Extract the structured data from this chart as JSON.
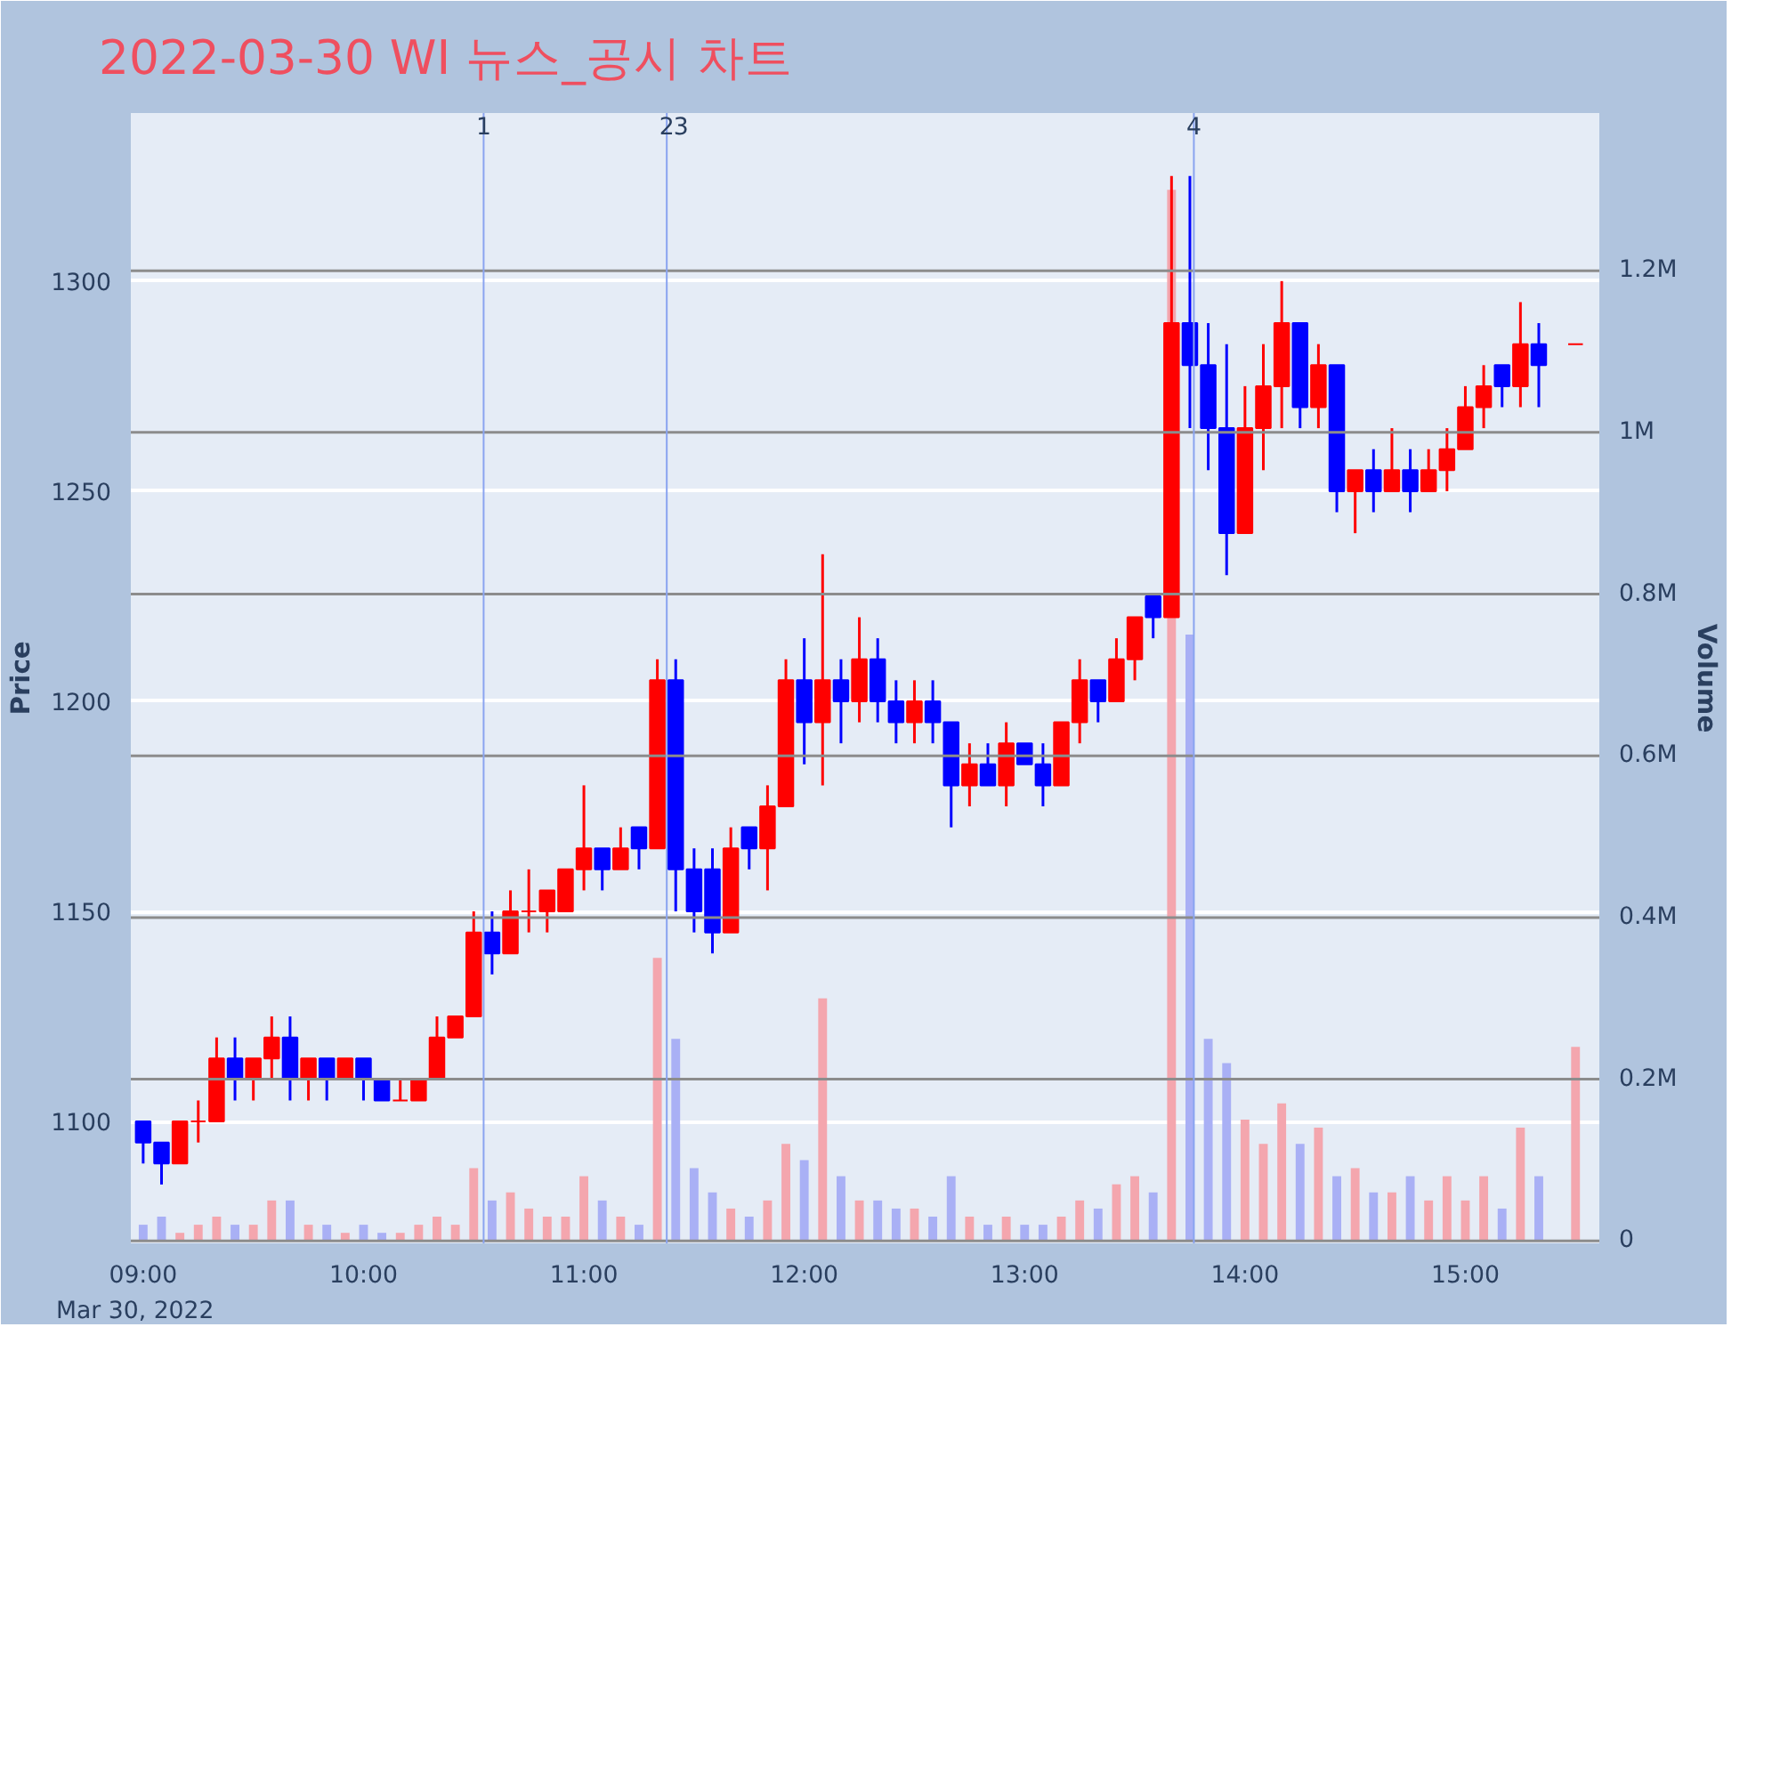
{
  "chart_data": {
    "type": "candlestick",
    "title": "2022-03-30 WI 뉴스_공시 차트",
    "ylabel": "Price",
    "y2label": "Volume",
    "annotations": [
      "Mar 30, 2022",
      {
        "text": "1",
        "x": 10.545,
        "y": 1340
      },
      {
        "text": "2",
        "x": 11.376,
        "y": 1340
      },
      {
        "text": "3",
        "x": 11.376,
        "y": 1340
      },
      {
        "text": "4",
        "x": 13.768,
        "y": 1340
      }
    ],
    "x": [
      9.0,
      9.0833,
      9.1667,
      9.25,
      9.3333,
      9.4167,
      9.5,
      9.5833,
      9.6667,
      9.75,
      9.8333,
      9.9167,
      10.0,
      10.0833,
      10.1667,
      10.25,
      10.3333,
      10.4167,
      10.5,
      10.5833,
      10.6667,
      10.75,
      10.8333,
      10.9167,
      11.0,
      11.0833,
      11.1667,
      11.25,
      11.3333,
      11.4167,
      11.5,
      11.5833,
      11.6667,
      11.75,
      11.8333,
      11.9167,
      12.0,
      12.0833,
      12.1667,
      12.25,
      12.3333,
      12.4167,
      12.5,
      12.5833,
      12.6667,
      12.75,
      12.8333,
      12.9167,
      13.0,
      13.0833,
      13.1667,
      13.25,
      13.3333,
      13.4167,
      13.5,
      13.5833,
      13.6667,
      13.75,
      13.8333,
      13.9167,
      14.0,
      14.0833,
      14.1667,
      14.25,
      14.3333,
      14.4167,
      14.5,
      14.5833,
      14.6667,
      14.75,
      14.8333,
      14.9167,
      15.0,
      15.0833,
      15.1667,
      15.25,
      15.3333,
      15.5
    ],
    "ohlc": [
      [
        1100,
        1100,
        1090,
        1095
      ],
      [
        1095,
        1095,
        1085,
        1090
      ],
      [
        1090,
        1100,
        1090,
        1100
      ],
      [
        1100,
        1105,
        1095,
        1100
      ],
      [
        1100,
        1120,
        1100,
        1115
      ],
      [
        1115,
        1120,
        1105,
        1110
      ],
      [
        1110,
        1115,
        1105,
        1115
      ],
      [
        1115,
        1125,
        1110,
        1120
      ],
      [
        1120,
        1125,
        1105,
        1110
      ],
      [
        1110,
        1115,
        1105,
        1115
      ],
      [
        1115,
        1115,
        1105,
        1110
      ],
      [
        1110,
        1115,
        1110,
        1115
      ],
      [
        1115,
        1115,
        1105,
        1110
      ],
      [
        1110,
        1110,
        1105,
        1105
      ],
      [
        1105,
        1110,
        1105,
        1105
      ],
      [
        1105,
        1110,
        1105,
        1110
      ],
      [
        1110,
        1125,
        1110,
        1120
      ],
      [
        1120,
        1125,
        1120,
        1125
      ],
      [
        1125,
        1150,
        1125,
        1145
      ],
      [
        1145,
        1150,
        1135,
        1140
      ],
      [
        1140,
        1155,
        1140,
        1150
      ],
      [
        1150,
        1160,
        1145,
        1150
      ],
      [
        1150,
        1155,
        1145,
        1155
      ],
      [
        1150,
        1160,
        1150,
        1160
      ],
      [
        1160,
        1180,
        1155,
        1165
      ],
      [
        1165,
        1165,
        1155,
        1160
      ],
      [
        1160,
        1170,
        1160,
        1165
      ],
      [
        1170,
        1170,
        1160,
        1165
      ],
      [
        1165,
        1210,
        1165,
        1205
      ],
      [
        1205,
        1210,
        1150,
        1160
      ],
      [
        1160,
        1165,
        1145,
        1150
      ],
      [
        1160,
        1165,
        1140,
        1145
      ],
      [
        1145,
        1170,
        1145,
        1165
      ],
      [
        1170,
        1170,
        1160,
        1165
      ],
      [
        1165,
        1180,
        1155,
        1175
      ],
      [
        1175,
        1210,
        1175,
        1205
      ],
      [
        1205,
        1215,
        1185,
        1195
      ],
      [
        1195,
        1235,
        1180,
        1205
      ],
      [
        1205,
        1210,
        1190,
        1200
      ],
      [
        1200,
        1220,
        1195,
        1210
      ],
      [
        1210,
        1215,
        1195,
        1200
      ],
      [
        1200,
        1205,
        1190,
        1195
      ],
      [
        1195,
        1205,
        1190,
        1200
      ],
      [
        1200,
        1205,
        1190,
        1195
      ],
      [
        1195,
        1195,
        1170,
        1180
      ],
      [
        1180,
        1190,
        1175,
        1185
      ],
      [
        1185,
        1190,
        1180,
        1180
      ],
      [
        1180,
        1195,
        1175,
        1190
      ],
      [
        1190,
        1190,
        1185,
        1185
      ],
      [
        1185,
        1190,
        1175,
        1180
      ],
      [
        1180,
        1195,
        1180,
        1195
      ],
      [
        1195,
        1210,
        1190,
        1205
      ],
      [
        1205,
        1205,
        1195,
        1200
      ],
      [
        1200,
        1215,
        1200,
        1210
      ],
      [
        1210,
        1220,
        1205,
        1220
      ],
      [
        1225,
        1225,
        1215,
        1220
      ],
      [
        1220,
        1325,
        1220,
        1290
      ],
      [
        1290,
        1325,
        1265,
        1280
      ],
      [
        1280,
        1290,
        1255,
        1265
      ],
      [
        1265,
        1285,
        1230,
        1240
      ],
      [
        1240,
        1275,
        1240,
        1265
      ],
      [
        1265,
        1285,
        1255,
        1275
      ],
      [
        1275,
        1300,
        1265,
        1290
      ],
      [
        1290,
        1290,
        1265,
        1270
      ],
      [
        1270,
        1285,
        1265,
        1280
      ],
      [
        1280,
        1280,
        1245,
        1250
      ],
      [
        1250,
        1255,
        1240,
        1255
      ],
      [
        1255,
        1260,
        1245,
        1250
      ],
      [
        1250,
        1265,
        1250,
        1255
      ],
      [
        1255,
        1260,
        1245,
        1250
      ],
      [
        1250,
        1260,
        1250,
        1255
      ],
      [
        1255,
        1265,
        1250,
        1260
      ],
      [
        1260,
        1275,
        1260,
        1270
      ],
      [
        1270,
        1280,
        1265,
        1275
      ],
      [
        1280,
        1280,
        1270,
        1275
      ],
      [
        1275,
        1295,
        1270,
        1285
      ],
      [
        1285,
        1290,
        1270,
        1280
      ],
      [
        1285,
        1285,
        1285,
        1285
      ]
    ],
    "colors": [
      "#0000ff",
      "#0000ff",
      "#ff0000",
      "#ff0000",
      "#ff0000",
      "#0000ff",
      "#ff0000",
      "#ff0000",
      "#0000ff",
      "#ff0000",
      "#0000ff",
      "#ff0000",
      "#0000ff",
      "#0000ff",
      "#ff0000",
      "#ff0000",
      "#ff0000",
      "#ff0000",
      "#ff0000",
      "#0000ff",
      "#ff0000",
      "#ff0000",
      "#ff0000",
      "#ff0000",
      "#ff0000",
      "#0000ff",
      "#ff0000",
      "#0000ff",
      "#ff0000",
      "#0000ff",
      "#0000ff",
      "#0000ff",
      "#ff0000",
      "#0000ff",
      "#ff0000",
      "#ff0000",
      "#0000ff",
      "#ff0000",
      "#0000ff",
      "#ff0000",
      "#0000ff",
      "#0000ff",
      "#ff0000",
      "#0000ff",
      "#0000ff",
      "#ff0000",
      "#0000ff",
      "#ff0000",
      "#0000ff",
      "#0000ff",
      "#ff0000",
      "#ff0000",
      "#0000ff",
      "#ff0000",
      "#ff0000",
      "#0000ff",
      "#ff0000",
      "#0000ff",
      "#0000ff",
      "#0000ff",
      "#ff0000",
      "#ff0000",
      "#ff0000",
      "#0000ff",
      "#ff0000",
      "#0000ff",
      "#ff0000",
      "#0000ff",
      "#ff0000",
      "#0000ff",
      "#ff0000",
      "#ff0000",
      "#ff0000",
      "#ff0000",
      "#0000ff",
      "#ff0000",
      "#0000ff",
      "#ff0000"
    ],
    "series": [
      {
        "type": "bar",
        "axis": "y2",
        "values": [
          20000,
          30000,
          10000,
          20000,
          30000,
          20000,
          20000,
          50000,
          50000,
          20000,
          20000,
          10000,
          20000,
          10000,
          10000,
          20000,
          30000,
          20000,
          90000,
          50000,
          60000,
          40000,
          30000,
          30000,
          80000,
          50000,
          30000,
          20000,
          350000,
          250000,
          90000,
          60000,
          40000,
          30000,
          50000,
          120000,
          100000,
          300000,
          80000,
          50000,
          50000,
          40000,
          40000,
          30000,
          80000,
          30000,
          20000,
          30000,
          20000,
          20000,
          30000,
          50000,
          40000,
          70000,
          80000,
          60000,
          1300000,
          750000,
          250000,
          220000,
          150000,
          120000,
          170000,
          120000,
          140000,
          80000,
          90000,
          60000,
          60000,
          80000,
          50000,
          80000,
          50000,
          80000,
          40000,
          140000,
          80000,
          240000
        ],
        "colors": [
          "#a9b0f5",
          "#a9b0f5",
          "#f4a6ae",
          "#f4a6ae",
          "#f4a6ae",
          "#a9b0f5",
          "#f4a6ae",
          "#f4a6ae",
          "#a9b0f5",
          "#f4a6ae",
          "#a9b0f5",
          "#f4a6ae",
          "#a9b0f5",
          "#a9b0f5",
          "#f4a6ae",
          "#f4a6ae",
          "#f4a6ae",
          "#f4a6ae",
          "#f4a6ae",
          "#a9b0f5",
          "#f4a6ae",
          "#f4a6ae",
          "#f4a6ae",
          "#f4a6ae",
          "#f4a6ae",
          "#a9b0f5",
          "#f4a6ae",
          "#a9b0f5",
          "#f4a6ae",
          "#a9b0f5",
          "#a9b0f5",
          "#a9b0f5",
          "#f4a6ae",
          "#a9b0f5",
          "#f4a6ae",
          "#f4a6ae",
          "#a9b0f5",
          "#f4a6ae",
          "#a9b0f5",
          "#f4a6ae",
          "#a9b0f5",
          "#a9b0f5",
          "#f4a6ae",
          "#a9b0f5",
          "#a9b0f5",
          "#f4a6ae",
          "#a9b0f5",
          "#f4a6ae",
          "#a9b0f5",
          "#a9b0f5",
          "#f4a6ae",
          "#f4a6ae",
          "#a9b0f5",
          "#f4a6ae",
          "#f4a6ae",
          "#a9b0f5",
          "#f4a6ae",
          "#a9b0f5",
          "#a9b0f5",
          "#a9b0f5",
          "#f4a6ae",
          "#f4a6ae",
          "#f4a6ae",
          "#a9b0f5",
          "#f4a6ae",
          "#a9b0f5",
          "#f4a6ae",
          "#a9b0f5",
          "#f4a6ae",
          "#a9b0f5",
          "#f4a6ae",
          "#f4a6ae",
          "#f4a6ae",
          "#f4a6ae",
          "#a9b0f5",
          "#f4a6ae",
          "#a9b0f5",
          "#f4a6ae"
        ]
      }
    ],
    "xlim": [
      8.944,
      15.608
    ],
    "xticks": [
      {
        "value": 9,
        "label": "09:00"
      },
      {
        "value": 10,
        "label": "10:00"
      },
      {
        "value": 11,
        "label": "11:00"
      },
      {
        "value": 12,
        "label": "12:00"
      },
      {
        "value": 13,
        "label": "13:00"
      },
      {
        "value": 14,
        "label": "14:00"
      },
      {
        "value": 15,
        "label": "15:00"
      }
    ],
    "ylim": [
      1071,
      1340
    ],
    "yticks": [
      1100,
      1150,
      1200,
      1250,
      1300
    ],
    "y2lim": [
      -3000,
      1395000
    ],
    "y2ticks": [
      {
        "value": 0,
        "label": "0"
      },
      {
        "value": 200000,
        "label": "0.2M"
      },
      {
        "value": 400000,
        "label": "0.4M"
      },
      {
        "value": 600000,
        "label": "0.6M"
      },
      {
        "value": 800000,
        "label": "0.8M"
      },
      {
        "value": 1000000,
        "label": "1M"
      },
      {
        "value": 1200000,
        "label": "1.2M"
      }
    ],
    "grid": "y",
    "ref_lines": [
      {
        "axis": "x",
        "value": 10.545,
        "color": "#8aa4f0"
      },
      {
        "axis": "x",
        "value": 11.376,
        "color": "#8aa4f0"
      },
      {
        "axis": "x",
        "value": 13.768,
        "color": "#8aa4f0"
      }
    ]
  }
}
